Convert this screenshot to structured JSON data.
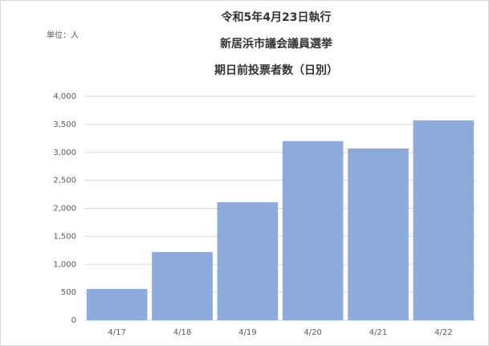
{
  "chart_data": {
    "type": "bar",
    "title": [
      "令和5年4月23日執行",
      "新居浜市議会議員選挙",
      "期日前投票者数（日別）"
    ],
    "unit_label": "単位：人",
    "categories": [
      "4/17",
      "4/18",
      "4/19",
      "4/20",
      "4/21",
      "4/22"
    ],
    "values": [
      560,
      1220,
      2110,
      3200,
      3070,
      3570
    ],
    "color": "#8faadc",
    "ylim": [
      0,
      4000
    ],
    "yticks": [
      0,
      500,
      {
        "value": 1000,
        "label": "1,000"
      },
      {
        "value": 1500,
        "label": "1,500"
      },
      {
        "value": 2000,
        "label": "2,000"
      },
      {
        "value": 2500,
        "label": "2,500"
      },
      {
        "value": 3000,
        "label": "3,000"
      },
      {
        "value": 3500,
        "label": "3,500"
      },
      {
        "value": 4000,
        "label": "4,000"
      }
    ],
    "grid": true
  }
}
